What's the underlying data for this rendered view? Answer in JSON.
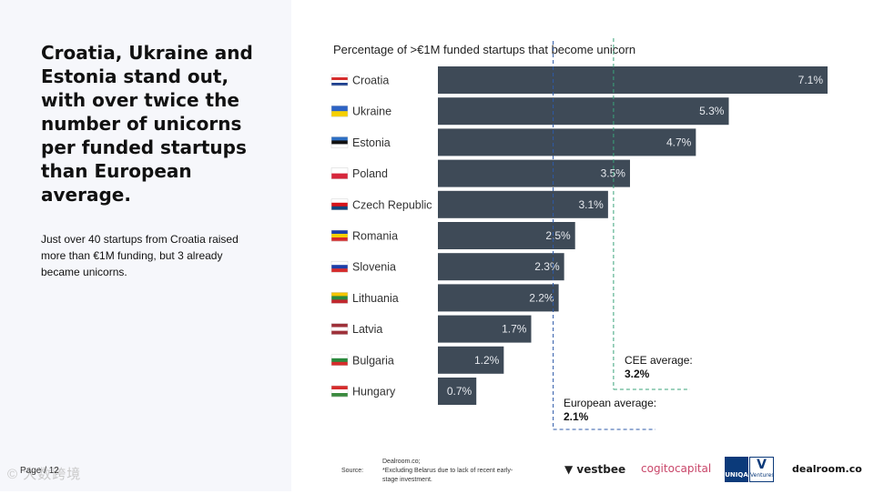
{
  "headline": "Croatia, Ukraine and Estonia stand out, with over twice the number of unicorns per funded startups than European average.",
  "subtext": "Just over 40 startups from Croatia raised more than €1M funding, but 3 already became unicorns.",
  "page_label": "Page / 12",
  "watermark": "© 大数跨境",
  "source": {
    "label": "Source:",
    "line1": "Dealroom.co;",
    "line2": "*Excluding Belarus due to lack of recent early-stage investment."
  },
  "logos": {
    "vestbee": "vestbee",
    "cogito": "cogitocapital",
    "uniqa": "UNIQA",
    "uniqa_sub": "Ventures",
    "dealroom": "dealroom.co"
  },
  "colors": {
    "bar": "#3e4a57",
    "european_line": "#2e5aa8",
    "cee_line": "#3aa37a"
  },
  "chart_data": {
    "type": "bar",
    "orientation": "horizontal",
    "title": "Percentage of >€1M funded startups that become unicorn",
    "unit": "%",
    "xlim": [
      0,
      7.1
    ],
    "categories": [
      "Croatia",
      "Ukraine",
      "Estonia",
      "Poland",
      "Czech Republic",
      "Romania",
      "Slovenia",
      "Lithuania",
      "Latvia",
      "Bulgaria",
      "Hungary"
    ],
    "values": [
      7.1,
      5.3,
      4.7,
      3.5,
      3.1,
      2.5,
      2.3,
      2.2,
      1.7,
      1.2,
      0.7
    ],
    "value_labels": [
      "7.1%",
      "5.3%",
      "4.7%",
      "3.5%",
      "3.1%",
      "2.5%",
      "2.3%",
      "2.2%",
      "1.7%",
      "1.2%",
      "0.7%"
    ],
    "flags": [
      [
        "#ffffff",
        "#d62b2b",
        "#ffffff",
        "#1d3f8f"
      ],
      [
        "#2d63c4",
        "#f5d000"
      ],
      [
        "#2d6fc4",
        "#111111",
        "#ffffff"
      ],
      [
        "#ffffff",
        "#d6263b"
      ],
      [
        "#ffffff",
        "#d7141a",
        "#11457e"
      ],
      [
        "#1d3fa8",
        "#f5d000",
        "#d62b2b"
      ],
      [
        "#ffffff",
        "#1d3fa8",
        "#d62b2b"
      ],
      [
        "#f5c400",
        "#2a8a3e",
        "#c1272d"
      ],
      [
        "#9e3039",
        "#ffffff",
        "#9e3039"
      ],
      [
        "#ffffff",
        "#2a8a3e",
        "#d62b2b"
      ],
      [
        "#d62b2b",
        "#ffffff",
        "#3a8a3e"
      ]
    ],
    "reference_lines": [
      {
        "name": "European average:",
        "value": 2.1,
        "label": "2.1%"
      },
      {
        "name": "CEE average:",
        "value": 3.2,
        "label": "3.2%"
      }
    ]
  }
}
